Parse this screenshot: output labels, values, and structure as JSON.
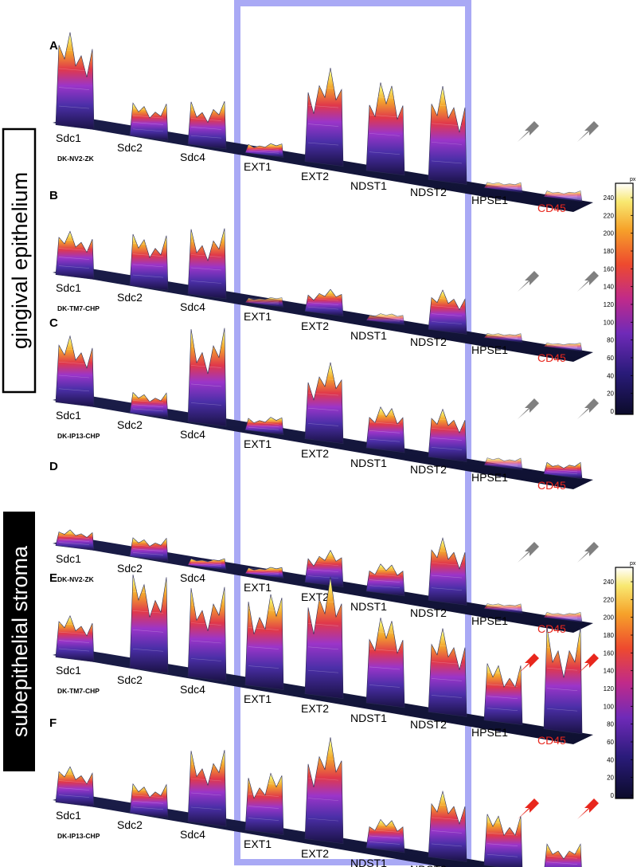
{
  "figure": {
    "side_labels": [
      "gingival epithelium",
      "subepithelial stroma"
    ],
    "colorbar": {
      "unit": "px",
      "ticks": [
        "240",
        "220",
        "200",
        "180",
        "160",
        "140",
        "120",
        "100",
        "80",
        "60",
        "40",
        "20",
        "0"
      ]
    },
    "gene_labels": [
      "Sdc1",
      "Sdc2",
      "Sdc4",
      "EXT1",
      "EXT2",
      "NDST1",
      "NDST2",
      "HPSE1",
      "CD45"
    ],
    "highlight_box_color": "#a9a9f5",
    "marker_color": "#e8271d",
    "panels": [
      {
        "letter": "A",
        "sample": "DK-NV2-ZK",
        "arrow": "gray",
        "peaks": [
          0.98,
          0.35,
          0.45,
          0.1,
          0.98,
          0.97,
          0.98,
          0.06,
          0.06
        ]
      },
      {
        "letter": "B",
        "sample": "DK-TM7-CHP",
        "arrow": "gray",
        "peaks": [
          0.5,
          0.6,
          0.75,
          0.06,
          0.25,
          0.08,
          0.45,
          0.05,
          0.04
        ]
      },
      {
        "letter": "C",
        "sample": "DK-IP13-CHP",
        "arrow": "gray",
        "peaks": [
          0.7,
          0.22,
          0.98,
          0.14,
          0.8,
          0.45,
          0.5,
          0.08,
          0.12
        ]
      },
      {
        "letter": "D",
        "sample": "DK-NV2-ZK",
        "arrow": "gray",
        "peaks": [
          0.25,
          0.3,
          0.1,
          0.1,
          0.5,
          0.45,
          0.98,
          0.08,
          0.08
        ]
      },
      {
        "letter": "E",
        "sample": "DK-TM7-CHP",
        "arrow": "red",
        "peaks": [
          0.35,
          0.8,
          0.75,
          0.8,
          0.98,
          0.75,
          0.7,
          0.5,
          0.85
        ]
      },
      {
        "letter": "F",
        "sample": "DK-IP13-CHP",
        "arrow": "red",
        "peaks": [
          0.3,
          0.25,
          0.6,
          0.5,
          0.85,
          0.25,
          0.55,
          0.45,
          0.25
        ]
      }
    ]
  }
}
